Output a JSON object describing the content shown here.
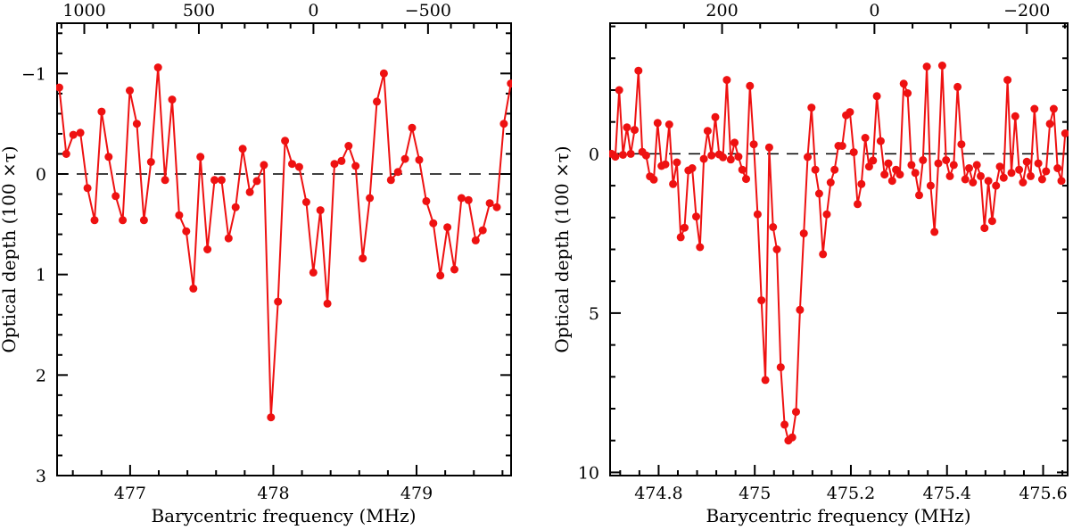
{
  "figure": {
    "background": "#ffffff",
    "axis_color": "#000000",
    "series_color": "#ee1111",
    "zero_line_color": "#000000"
  },
  "chart_data": [
    {
      "type": "line",
      "panel": "left",
      "xlabel": "Barycentric frequency (MHz)",
      "ylabel": "Optical depth (100 ×τ)",
      "xlim": [
        476.49,
        479.66
      ],
      "ylim_top_to_bottom": [
        -1.5,
        3.0
      ],
      "y_axis_inverted": true,
      "grid": false,
      "legend": "none",
      "marker": "filled-circle",
      "zero_line": 0,
      "x_major_ticks": [
        477,
        478,
        479
      ],
      "x_major_labels": [
        "477",
        "478",
        "479"
      ],
      "x_minor_divs": 5,
      "y_major_ticks": [
        -1,
        0,
        1,
        2,
        3
      ],
      "y_major_labels": [
        "−1",
        "0",
        "1",
        "2",
        "3"
      ],
      "y_minor_divs": 5,
      "top_axis": {
        "unit": "velocity (km/s)",
        "major_labels": [
          "1000",
          "500",
          "0",
          "−500"
        ],
        "major_positions_mhz": [
          476.68,
          477.48,
          478.28,
          479.08
        ],
        "minor_divs": 5
      },
      "x_start": 476.505,
      "x_step": 0.04928,
      "values": [
        -0.86,
        -0.2,
        -0.39,
        -0.41,
        0.14,
        0.46,
        -0.62,
        -0.17,
        0.22,
        0.46,
        -0.83,
        -0.5,
        0.46,
        -0.12,
        -1.06,
        0.06,
        -0.74,
        0.41,
        0.57,
        1.14,
        -0.17,
        0.75,
        0.06,
        0.06,
        0.64,
        0.33,
        -0.25,
        0.18,
        0.07,
        -0.09,
        2.42,
        1.27,
        -0.33,
        -0.1,
        -0.07,
        0.28,
        0.98,
        0.36,
        1.29,
        -0.1,
        -0.13,
        -0.28,
        -0.08,
        0.84,
        0.24,
        -0.72,
        -1.0,
        0.06,
        -0.02,
        -0.15,
        -0.46,
        -0.14,
        0.27,
        0.49,
        1.01,
        0.53,
        0.95,
        0.24,
        0.26,
        0.66,
        0.56,
        0.29,
        0.33,
        -0.5,
        -0.9
      ]
    },
    {
      "type": "line",
      "panel": "right",
      "xlabel": "Barycentric frequency (MHz)",
      "ylabel": "Optical depth (100 ×τ)",
      "xlim": [
        474.699,
        475.651
      ],
      "ylim_top_to_bottom": [
        -4.1,
        10.1
      ],
      "y_axis_inverted": true,
      "grid": false,
      "legend": "none",
      "marker": "filled-circle",
      "zero_line": 0,
      "x_major_ticks": [
        474.8,
        475.0,
        475.2,
        475.4,
        475.6
      ],
      "x_major_labels": [
        "474.8",
        "475",
        "475.2",
        "475.4",
        "475.6"
      ],
      "x_minor_divs": 5,
      "y_major_ticks": [
        0,
        5,
        10
      ],
      "y_major_labels": [
        "0",
        "5",
        "10"
      ],
      "y_minor_divs": 5,
      "top_axis": {
        "unit": "velocity (km/s)",
        "major_labels": [
          "200",
          "0",
          "−200"
        ],
        "major_positions_mhz": [
          474.932,
          475.249,
          475.566
        ],
        "minor_divs": 4
      },
      "x_start": 474.702,
      "x_step": 0.008,
      "values": [
        0.0,
        0.09,
        -2.0,
        0.03,
        -0.83,
        0.0,
        -0.75,
        -2.61,
        -0.06,
        0.05,
        0.71,
        0.81,
        -0.97,
        0.38,
        0.33,
        -0.92,
        0.95,
        0.27,
        2.62,
        2.32,
        0.52,
        0.45,
        1.97,
        2.93,
        0.16,
        -0.72,
        0.05,
        -1.15,
        0.02,
        0.11,
        -2.32,
        0.18,
        -0.35,
        0.09,
        0.5,
        0.79,
        -2.13,
        -0.3,
        1.9,
        4.6,
        7.1,
        -0.2,
        2.3,
        3.0,
        6.7,
        8.5,
        9.0,
        8.9,
        8.1,
        4.9,
        2.5,
        0.1,
        -1.45,
        0.5,
        1.25,
        3.15,
        1.9,
        0.9,
        0.5,
        -0.25,
        -0.25,
        -1.21,
        -1.31,
        -0.05,
        1.58,
        0.95,
        -0.5,
        0.4,
        0.21,
        -1.81,
        -0.4,
        0.65,
        0.3,
        0.85,
        0.5,
        0.65,
        -2.2,
        -1.9,
        0.35,
        0.6,
        1.3,
        0.2,
        -2.74,
        1.0,
        2.45,
        0.3,
        -2.77,
        0.2,
        0.7,
        0.35,
        -2.1,
        -0.3,
        0.8,
        0.45,
        0.9,
        0.35,
        0.7,
        2.33,
        0.85,
        2.11,
        1.0,
        0.4,
        0.75,
        -2.32,
        0.6,
        -1.18,
        0.5,
        0.9,
        0.25,
        0.7,
        -1.41,
        0.3,
        0.8,
        0.55,
        -0.94,
        -1.41,
        0.45,
        0.85,
        -0.64
      ]
    }
  ]
}
